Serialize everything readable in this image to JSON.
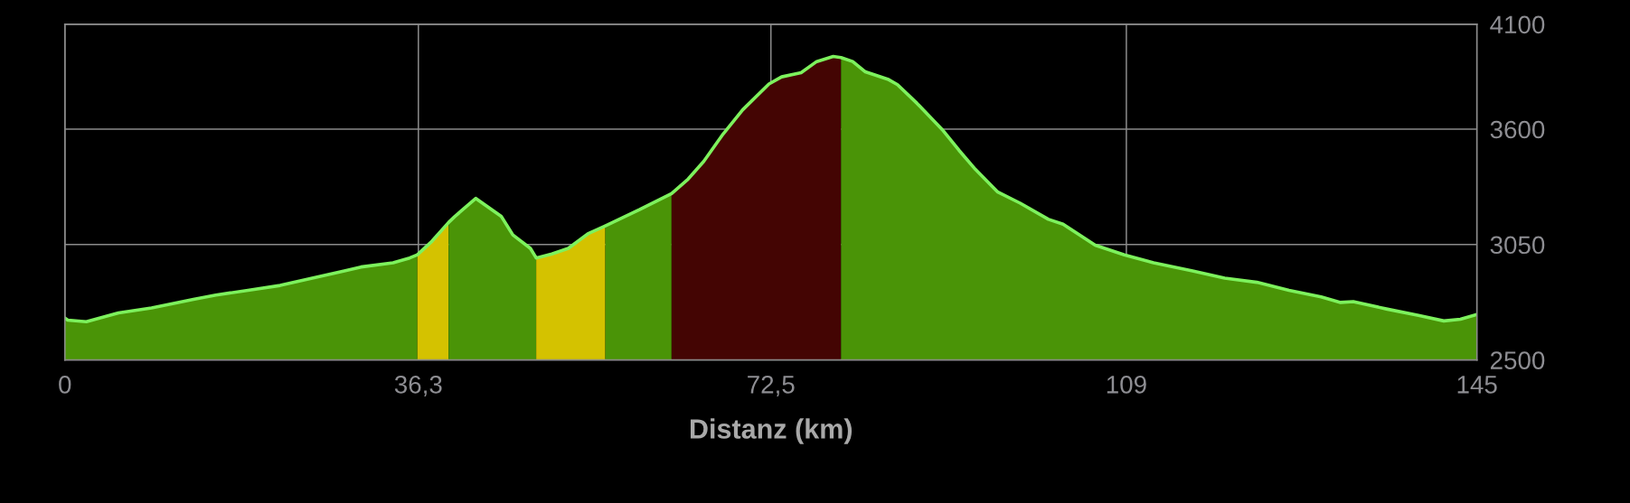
{
  "chart_data": {
    "type": "area",
    "xlabel": "Distanz (km)",
    "xlim": [
      0,
      145
    ],
    "xticks": [
      0,
      {
        "value": 36.3,
        "label": "36,3"
      },
      {
        "value": 72.5,
        "label": "72,5"
      },
      109,
      145
    ],
    "ylim": [
      2500,
      4100
    ],
    "yticks": [
      2500,
      3050,
      3600,
      4100
    ],
    "grid": true,
    "series": [
      {
        "color": "#4a9407",
        "x": [
          0,
          0.3,
          2.2,
          5.5,
          8.9,
          13.2,
          15.5,
          18.8,
          22.1,
          25.4,
          28.7,
          30.4,
          33.7,
          35.4,
          36.2
        ],
        "values": [
          2700,
          2690,
          2682,
          2724,
          2748,
          2789,
          2809,
          2832,
          2855,
          2890,
          2924,
          2943,
          2963,
          2986,
          3001
        ]
      },
      {
        "color": "#d4c200",
        "x": [
          36.2,
          37.7,
          39.4
        ],
        "values": [
          3001,
          3066,
          3155
        ]
      },
      {
        "color": "#4a9407",
        "x": [
          39.4,
          40.0,
          42.2,
          44.8,
          46.0,
          47.8,
          48.4
        ],
        "values": [
          3155,
          3182,
          3270,
          3185,
          3096,
          3032,
          2986
        ]
      },
      {
        "color": "#d4c200",
        "x": [
          48.4,
          50.0,
          51.7,
          53.7,
          55.5
        ],
        "values": [
          2986,
          3005,
          3032,
          3101,
          3139
        ]
      },
      {
        "color": "#4a9407",
        "x": [
          55.5,
          59.0,
          62.3
        ],
        "values": [
          3139,
          3216,
          3293
        ]
      },
      {
        "color": "#440503",
        "x": [
          62.3,
          64.0,
          65.6,
          67.6,
          69.6,
          72.3,
          73.6,
          75.6,
          77.2,
          78.9,
          79.7
        ],
        "values": [
          3293,
          3362,
          3446,
          3577,
          3692,
          3815,
          3849,
          3869,
          3922,
          3946,
          3941
        ]
      },
      {
        "color": "#4a9407",
        "x": [
          79.7,
          80.9,
          82.2,
          84.5,
          85.5,
          87.5,
          90.2,
          91.8,
          93.5,
          95.8,
          98.1,
          101.0,
          102.5,
          105.8,
          108.8,
          111.8,
          115.8,
          119.1,
          122.4,
          125.7,
          129.0,
          131.0,
          132.3,
          135.7,
          139.0,
          141.6,
          143.3,
          145
        ],
        "values": [
          3941,
          3922,
          3873,
          3838,
          3812,
          3723,
          3592,
          3500,
          3408,
          3300,
          3247,
          3170,
          3147,
          3047,
          3001,
          2963,
          2924,
          2890,
          2870,
          2832,
          2801,
          2774,
          2778,
          2743,
          2712,
          2686,
          2694,
          2717
        ]
      },
      {
        "type": "line",
        "color": "#7df25d",
        "x": [
          0,
          0.3,
          2.2,
          5.5,
          8.9,
          13.2,
          15.5,
          18.8,
          22.1,
          25.4,
          28.7,
          30.4,
          33.7,
          35.4,
          36.2,
          37.7,
          39.4,
          40.0,
          42.2,
          44.8,
          46.0,
          47.8,
          48.4,
          50.0,
          51.7,
          53.7,
          55.5,
          59.0,
          62.3,
          64.0,
          65.6,
          67.6,
          69.6,
          72.3,
          73.6,
          75.6,
          77.2,
          78.9,
          79.7,
          80.9,
          82.2,
          84.5,
          85.5,
          87.5,
          90.2,
          91.8,
          93.5,
          95.8,
          98.1,
          101.0,
          102.5,
          105.8,
          108.8,
          111.8,
          115.8,
          119.1,
          122.4,
          125.7,
          129.0,
          131.0,
          132.3,
          135.7,
          139.0,
          141.6,
          143.3,
          145
        ],
        "values": [
          2700,
          2690,
          2682,
          2724,
          2748,
          2789,
          2809,
          2832,
          2855,
          2890,
          2924,
          2943,
          2963,
          2986,
          3001,
          3066,
          3155,
          3182,
          3270,
          3185,
          3096,
          3032,
          2986,
          3005,
          3032,
          3101,
          3139,
          3216,
          3293,
          3362,
          3446,
          3577,
          3692,
          3815,
          3849,
          3869,
          3922,
          3946,
          3941,
          3922,
          3873,
          3838,
          3812,
          3723,
          3592,
          3500,
          3408,
          3300,
          3247,
          3170,
          3147,
          3047,
          3001,
          2963,
          2924,
          2890,
          2870,
          2832,
          2801,
          2774,
          2778,
          2743,
          2712,
          2686,
          2694,
          2717
        ]
      }
    ]
  }
}
